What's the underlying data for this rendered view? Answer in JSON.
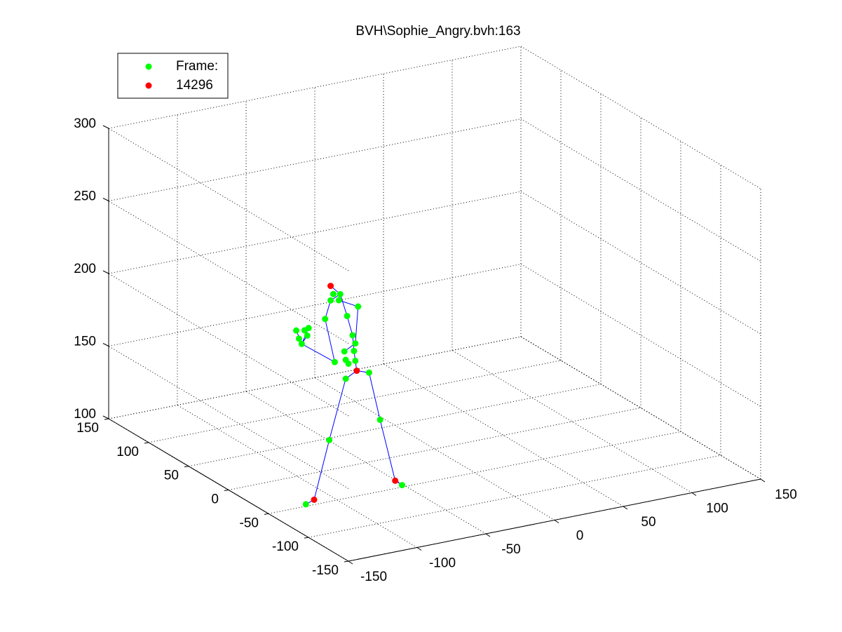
{
  "chart_data": {
    "type": "scatter3d",
    "title": "BVH\\Sophie_Angry.bvh:163",
    "xlim": [
      -150,
      150
    ],
    "ylim": [
      -150,
      150
    ],
    "zlim": [
      100,
      300
    ],
    "xticks": [
      -150,
      -100,
      -50,
      0,
      50,
      100,
      150
    ],
    "yticks": [
      -150,
      -100,
      -50,
      0,
      50,
      100,
      150
    ],
    "zticks": [
      100,
      150,
      200,
      250,
      300
    ],
    "grid": true,
    "legend": "top-left",
    "series": [
      {
        "name": "Frame:",
        "color": "#00ff00",
        "x": [
          -117,
          -47,
          -100,
          -88,
          -71,
          -63,
          -82,
          -83,
          -87,
          -92,
          -97,
          -99,
          -93,
          -79,
          -81,
          -89,
          -88,
          -86,
          -81,
          -103,
          -96,
          -120,
          -124,
          -118,
          -115,
          -122,
          -116
        ],
        "y": [
          -40,
          -40,
          -40,
          -40,
          -40,
          -40,
          -40,
          -40,
          -40,
          -40,
          -40,
          -40,
          -40,
          -40,
          -40,
          -40,
          -40,
          -40,
          -40,
          -40,
          -40,
          -40,
          -40,
          -40,
          -40,
          -40,
          -40
        ],
        "z": [
          97,
          97,
          138,
          178,
          179,
          145,
          196,
          207,
          221,
          237,
          238,
          234,
          233,
          226,
          201,
          197,
          191,
          188,
          189,
          222,
          191,
          208,
          218,
          217,
          218,
          212,
          213
        ]
      },
      {
        "name": "14296",
        "color": "#ff0000",
        "x": [
          -99,
          -80,
          -111,
          -52
        ],
        "y": [
          -40,
          -40,
          -40,
          -40
        ],
        "z": [
          244,
          182,
          99,
          101
        ]
      }
    ],
    "lines": {
      "color": "#0000ff",
      "x": [
        -80,
        -88,
        -100,
        -111,
        -117,
        null,
        -80,
        -71,
        -63,
        -52,
        -47,
        null,
        -80,
        -82,
        -83,
        -87,
        -92,
        -99,
        null,
        -92,
        -99,
        -103,
        -96,
        -120,
        -124,
        null,
        -92,
        -93,
        -79,
        -81,
        -89,
        null,
        -116,
        -120,
        -115
      ],
      "y": [
        -40,
        -40,
        -40,
        -40,
        -40,
        null,
        -40,
        -40,
        -40,
        -40,
        -40,
        null,
        -40,
        -40,
        -40,
        -40,
        -40,
        -40,
        null,
        -40,
        -40,
        -40,
        -40,
        -40,
        -40,
        null,
        -40,
        -40,
        -40,
        -40,
        -40,
        null,
        -40,
        -40,
        -40
      ],
      "z": [
        182,
        178,
        138,
        99,
        97,
        null,
        182,
        179,
        145,
        101,
        97,
        null,
        182,
        196,
        207,
        221,
        237,
        244,
        null,
        237,
        234,
        222,
        191,
        208,
        218,
        null,
        237,
        233,
        226,
        201,
        197,
        null,
        213,
        208,
        218
      ]
    }
  }
}
